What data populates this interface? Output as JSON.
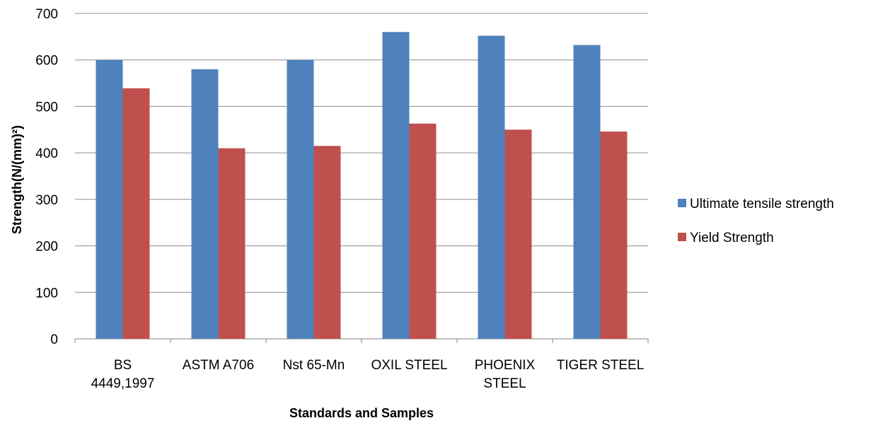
{
  "chart_data": {
    "type": "bar",
    "title": "",
    "xlabel": "Standards and Samples",
    "ylabel": "Strength(N/(mm)²)",
    "ylim": [
      0,
      700
    ],
    "yticks": [
      0,
      100,
      200,
      300,
      400,
      500,
      600,
      700
    ],
    "grid": true,
    "legend_position": "right",
    "categories": [
      [
        "BS",
        "4449,1997"
      ],
      [
        "ASTM A706"
      ],
      [
        "Nst 65-Mn"
      ],
      [
        "OXIL STEEL"
      ],
      [
        "PHOENIX",
        "STEEL"
      ],
      [
        "TIGER STEEL"
      ]
    ],
    "series": [
      {
        "name": "Ultimate tensile strength",
        "color": "#4f81bd",
        "values": [
          600,
          580,
          600,
          660,
          652,
          632
        ]
      },
      {
        "name": "Yield Strength",
        "color": "#c0504d",
        "values": [
          539,
          410,
          415,
          463,
          450,
          446
        ]
      }
    ]
  }
}
